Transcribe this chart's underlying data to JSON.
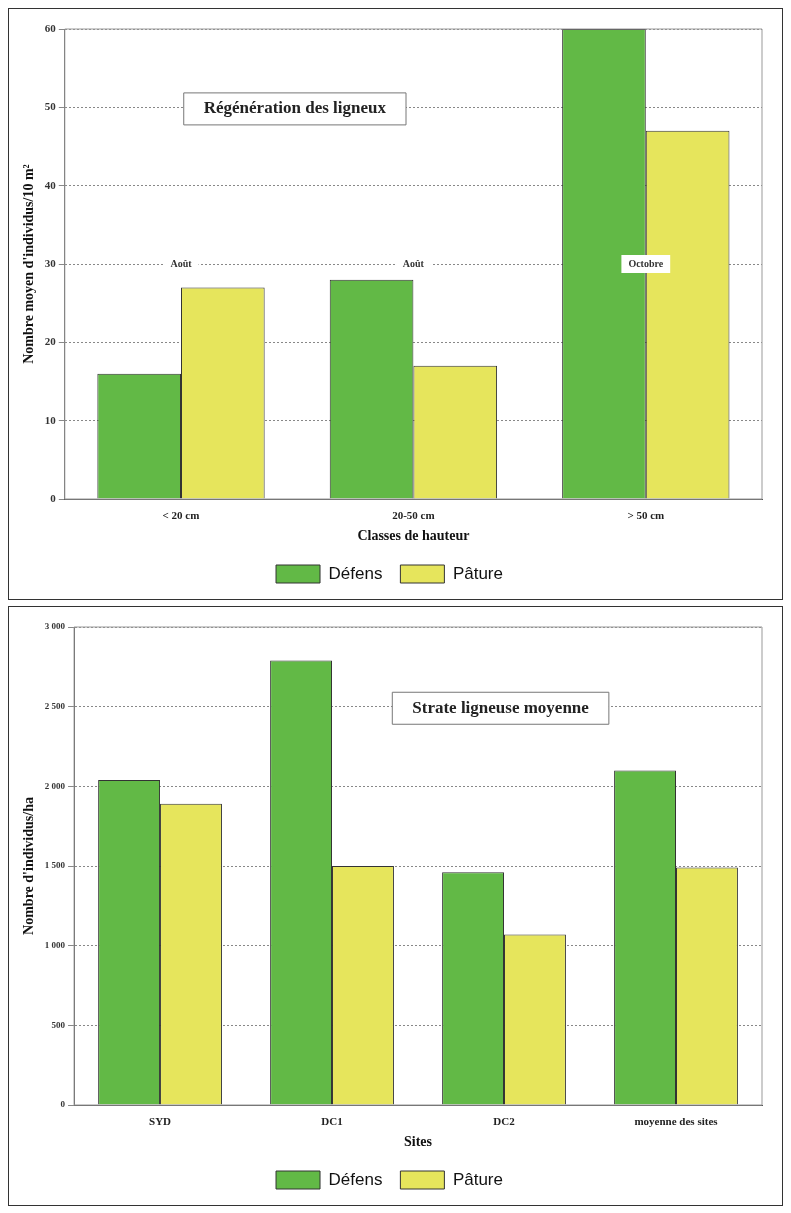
{
  "chart_data": [
    {
      "type": "bar",
      "title": "Régénération des ligneux",
      "xlabel": "Classes de hauteur",
      "ylabel": "Nombre moyen d'individus/10 m²",
      "categories": [
        "< 20 cm",
        "20-50 cm",
        "> 50 cm"
      ],
      "series": [
        {
          "name": "Défens",
          "color": "#62b946",
          "values": [
            16,
            28,
            60
          ]
        },
        {
          "name": "Pâture",
          "color": "#e6e55c",
          "values": [
            27,
            17,
            47
          ]
        }
      ],
      "ylim": [
        0,
        60
      ],
      "yticks": [
        0,
        10,
        20,
        30,
        40,
        50,
        60
      ],
      "grid": "y",
      "legend": "bottom",
      "annotations": [
        {
          "text": "Août",
          "x": "< 20 cm",
          "y": 30
        },
        {
          "text": "Août",
          "x": "20-50 cm",
          "y": 30
        },
        {
          "text": "Octobre",
          "x": "> 50 cm",
          "y": 30
        }
      ]
    },
    {
      "type": "bar",
      "title": "Strate ligneuse moyenne",
      "xlabel": "Sites",
      "ylabel": "Nombre d'individus/ha",
      "categories": [
        "SYD",
        "DC1",
        "DC2",
        "moyenne des sites"
      ],
      "series": [
        {
          "name": "Défens",
          "color": "#62b946",
          "values": [
            2040,
            2790,
            1460,
            2100
          ]
        },
        {
          "name": "Pâture",
          "color": "#e6e55c",
          "values": [
            1890,
            1500,
            1070,
            1490
          ]
        }
      ],
      "ylim": [
        0,
        3000
      ],
      "yticks": [
        0,
        500,
        {
          "value": 1000,
          "label": "1 000"
        },
        {
          "value": 1500,
          "label": "1 500"
        },
        {
          "value": 2000,
          "label": "2 000"
        },
        {
          "value": 2500,
          "label": "2 500"
        },
        {
          "value": 3000,
          "label": "3 000"
        }
      ],
      "grid": "y",
      "legend": "bottom"
    }
  ]
}
